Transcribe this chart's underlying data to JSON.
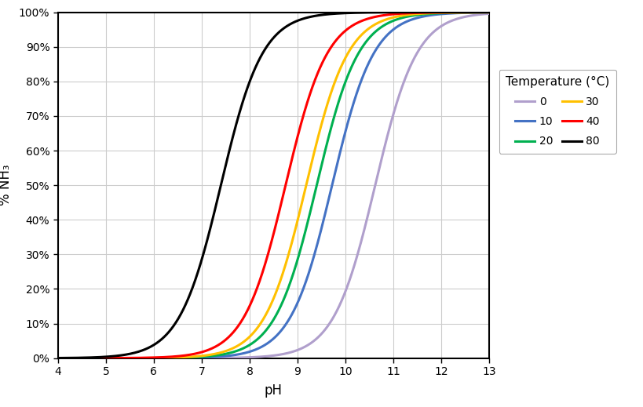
{
  "title": "",
  "xlabel": "pH",
  "ylabel": "% NH₃",
  "xlim": [
    4,
    13
  ],
  "ylim": [
    0,
    1.0
  ],
  "xticks": [
    4,
    5,
    6,
    7,
    8,
    9,
    10,
    11,
    12,
    13
  ],
  "yticks": [
    0,
    0.1,
    0.2,
    0.3,
    0.4,
    0.5,
    0.6,
    0.7,
    0.8,
    0.9,
    1.0
  ],
  "ytick_labels": [
    "0%",
    "10%",
    "20%",
    "30%",
    "40%",
    "50%",
    "60%",
    "70%",
    "80%",
    "90%",
    "100%"
  ],
  "temperatures": [
    0,
    10,
    20,
    30,
    40,
    80
  ],
  "pKa_values": [
    10.62,
    9.72,
    9.4,
    9.18,
    8.75,
    7.4
  ],
  "colors": [
    "#b09fcc",
    "#4472c4",
    "#00b050",
    "#ffc000",
    "#ff0000",
    "#000000"
  ],
  "legend_title": "Temperature (°C)",
  "legend_labels": [
    "0",
    "10",
    "20",
    "30",
    "40",
    "80"
  ],
  "legend_col1": [
    "0",
    "10"
  ],
  "legend_col2": [
    "20",
    "30"
  ],
  "legend_col3": [
    "40",
    "80"
  ],
  "background_color": "#ffffff",
  "grid_color": "#cccccc",
  "linewidth": 2.2
}
